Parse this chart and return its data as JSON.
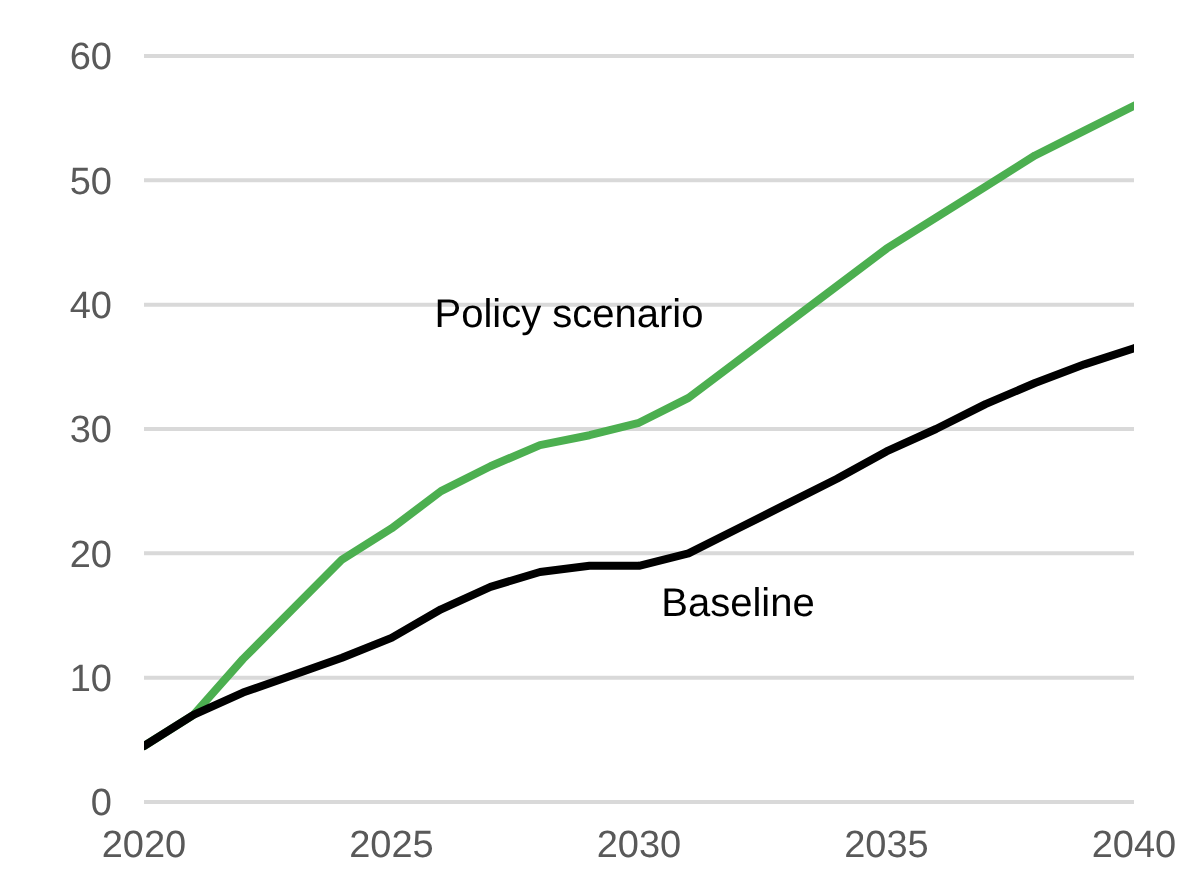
{
  "chart_data": {
    "type": "line",
    "x": [
      2020,
      2021,
      2022,
      2023,
      2024,
      2025,
      2026,
      2027,
      2028,
      2029,
      2030,
      2031,
      2032,
      2033,
      2034,
      2035,
      2036,
      2037,
      2038,
      2039,
      2040
    ],
    "series": [
      {
        "name": "Policy scenario",
        "color": "#4caf50",
        "values": [
          4.5,
          7,
          11.5,
          15.5,
          19.5,
          22,
          25,
          27,
          28.7,
          29.5,
          30.5,
          32.5,
          35.5,
          38.5,
          41.5,
          44.5,
          47,
          49.5,
          52,
          54,
          56
        ]
      },
      {
        "name": "Baseline",
        "color": "#000000",
        "values": [
          4.5,
          7,
          8.8,
          10.2,
          11.6,
          13.2,
          15.5,
          17.3,
          18.5,
          19,
          19,
          20,
          22,
          24,
          26,
          28.2,
          30,
          32,
          33.7,
          35.2,
          36.5
        ]
      }
    ],
    "xlim": [
      2020,
      2040
    ],
    "xticks": [
      2020,
      2025,
      2030,
      2035,
      2040
    ],
    "ylim": [
      0,
      60
    ],
    "yticks": [
      0,
      10,
      20,
      30,
      40,
      50,
      60
    ],
    "grid": "y",
    "marker": "none",
    "line_style": "solid"
  }
}
